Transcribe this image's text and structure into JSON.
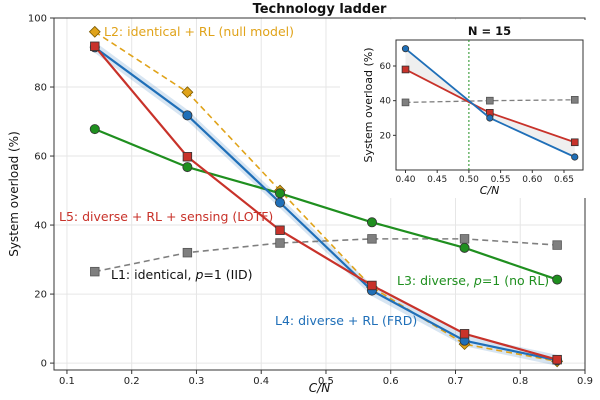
{
  "chart_data": [
    {
      "type": "line",
      "title": "Technology ladder",
      "xlabel": "C/N",
      "ylabel": "System overload (%)",
      "xlim": [
        0.08,
        0.9
      ],
      "ylim": [
        -2,
        100
      ],
      "xticks": [
        0.1,
        0.2,
        0.3,
        0.4,
        0.5,
        0.6,
        0.7,
        0.8,
        0.9
      ],
      "yticks": [
        0,
        20,
        40,
        60,
        80,
        100
      ],
      "grid": true,
      "x": [
        0.143,
        0.286,
        0.429,
        0.571,
        0.714,
        0.857
      ],
      "series": [
        {
          "name": "L1",
          "label": "L1: identical, p=1 (IID)",
          "color": "#7f7f7f",
          "marker": "square",
          "dash": true,
          "values": [
            26.5,
            32,
            34.8,
            36,
            36,
            34.2
          ]
        },
        {
          "name": "L2",
          "label": "L2: identical + RL  (null model)",
          "color": "#e0a31a",
          "marker": "diamond",
          "dash": true,
          "values": [
            96,
            78.5,
            50,
            22,
            5.5,
            0.5
          ]
        },
        {
          "name": "L3",
          "label": "L3: diverse, p=1 (no RL)",
          "color": "#1f8f1f",
          "marker": "circle",
          "dash": false,
          "values": [
            67.8,
            56.8,
            49.2,
            40.8,
            33.4,
            24.2
          ]
        },
        {
          "name": "L4",
          "label": "L4: diverse + RL (FRD)",
          "color": "#1f6fb8",
          "marker": "circle",
          "dash": false,
          "values": [
            91.5,
            71.8,
            46.5,
            21,
            6.5,
            0.8
          ]
        },
        {
          "name": "L5",
          "label": "L5: diverse + RL + sensing (LOTF)",
          "color": "#c8322a",
          "marker": "square",
          "dash": false,
          "values": [
            91.8,
            59.8,
            38.5,
            22.5,
            8.5,
            1
          ]
        }
      ],
      "annotations": [
        {
          "series": "L2",
          "parts": [
            "L2: identical + RL  (null model)"
          ]
        },
        {
          "series": "L5",
          "parts": [
            "L5: diverse + RL + sensing (LOTF)"
          ]
        },
        {
          "series": "L1",
          "parts": [
            "L1: identical, ",
            "p",
            "=1 (IID)"
          ]
        },
        {
          "series": "L3",
          "parts": [
            "L3: diverse, ",
            "p",
            "=1 (no RL)"
          ]
        },
        {
          "series": "L4",
          "parts": [
            "L4: diverse + RL (FRD)"
          ]
        }
      ]
    },
    {
      "type": "line",
      "title": "N = 15",
      "xlabel": "C/N",
      "ylabel": "System overload (%)",
      "xlim": [
        0.385,
        0.68
      ],
      "ylim": [
        0,
        75
      ],
      "xticks": [
        0.4,
        0.45,
        0.5,
        0.55,
        0.6,
        0.65
      ],
      "yticks": [
        20,
        40,
        60
      ],
      "reference_line_x": 0.5,
      "series": [
        {
          "name": "L1",
          "x": [
            0.4,
            0.533,
            0.667
          ],
          "values": [
            39,
            40,
            40.5
          ],
          "color": "#7f7f7f",
          "marker": "square",
          "dash": true
        },
        {
          "name": "L4",
          "x": [
            0.4,
            0.533,
            0.667
          ],
          "values": [
            70,
            30,
            7.5
          ],
          "color": "#1f6fb8",
          "marker": "circle",
          "dash": false
        },
        {
          "name": "L5",
          "x": [
            0.4,
            0.533,
            0.667
          ],
          "values": [
            58,
            33,
            16
          ],
          "color": "#c8322a",
          "marker": "square",
          "dash": false
        }
      ]
    }
  ]
}
